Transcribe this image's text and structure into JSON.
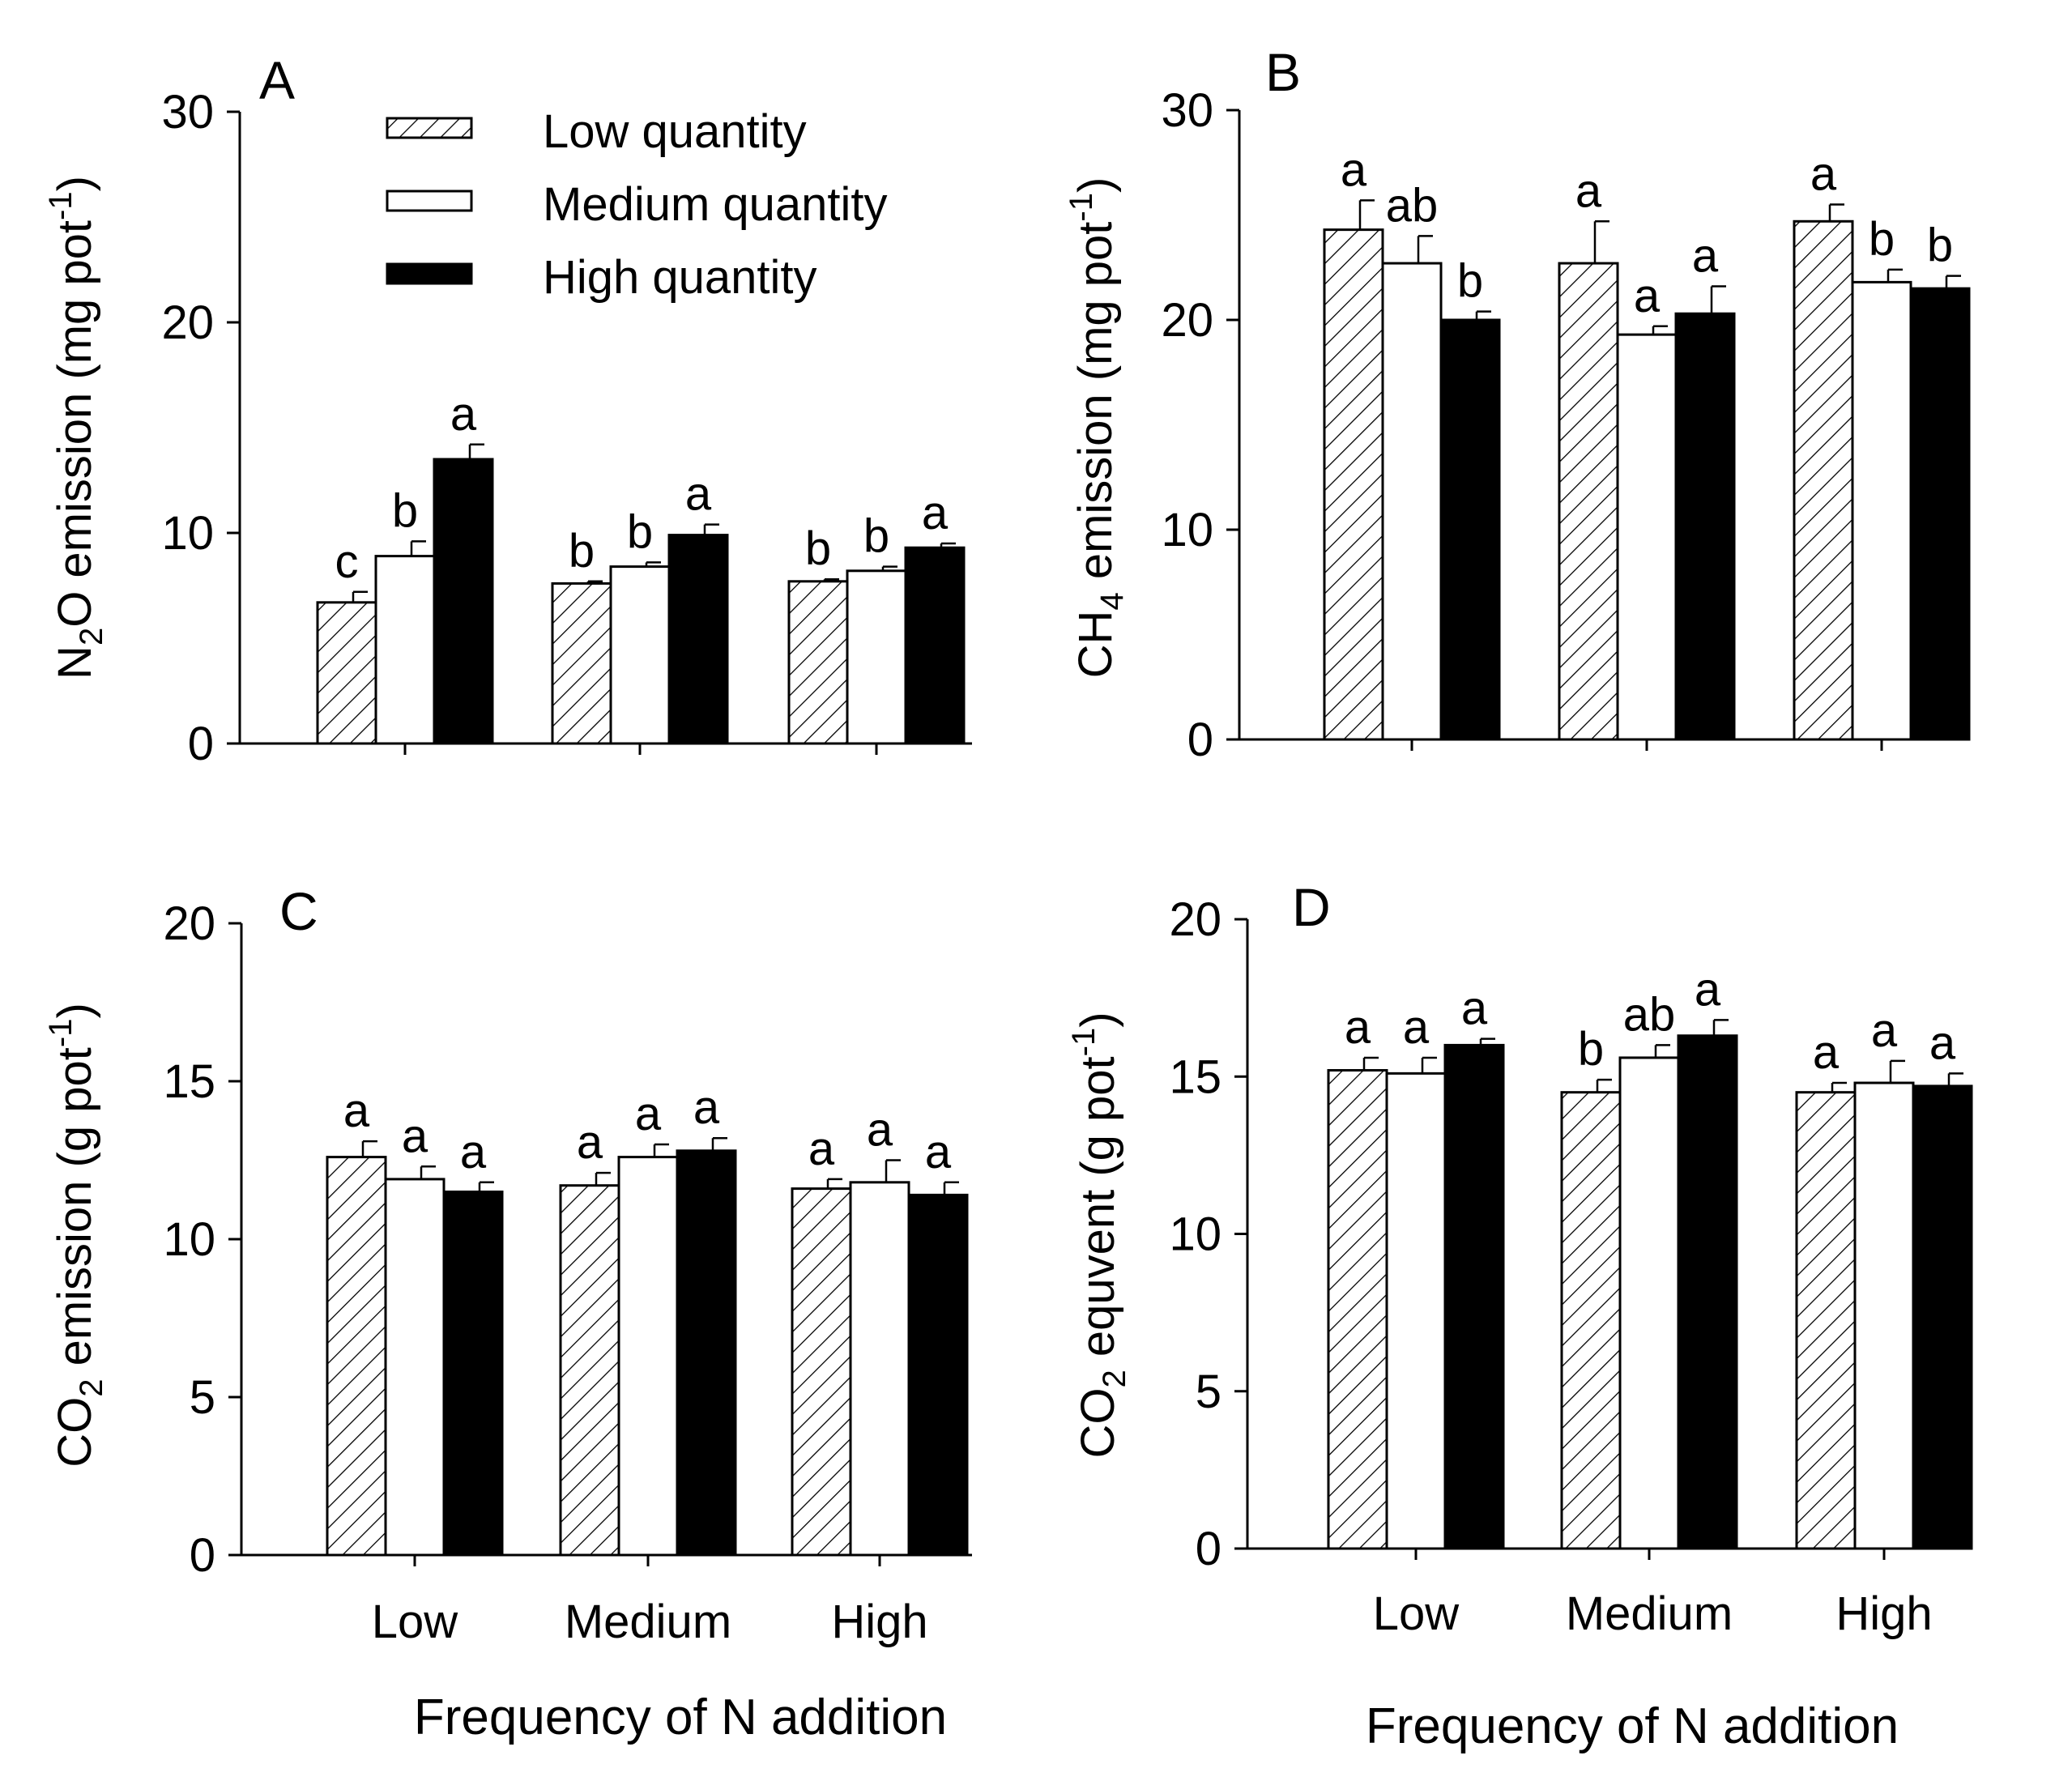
{
  "legend": {
    "items": [
      {
        "label": "Low quantity",
        "style": "hatched"
      },
      {
        "label": "Medium quantity",
        "style": "white"
      },
      {
        "label": "High quantity",
        "style": "black"
      }
    ]
  },
  "x_axis_title": "Frequency of N addition",
  "chart_data": [
    {
      "panel": "A",
      "type": "bar",
      "categories": [
        "Low",
        "Medium",
        "High"
      ],
      "ylabel_parts": [
        "N",
        "2",
        "O emission (mg pot",
        "-1",
        ")"
      ],
      "ylim": [
        0,
        30
      ],
      "yticks": [
        0,
        10,
        20,
        30
      ],
      "series": [
        {
          "name": "Low quantity",
          "values": [
            6.7,
            7.6,
            7.7
          ],
          "errors": [
            0.5,
            0.1,
            0.1
          ],
          "letters": [
            "c",
            "b",
            "b"
          ]
        },
        {
          "name": "Medium quantity",
          "values": [
            8.9,
            8.4,
            8.2
          ],
          "errors": [
            0.7,
            0.2,
            0.2
          ],
          "letters": [
            "b",
            "b",
            "b"
          ]
        },
        {
          "name": "High quantity",
          "values": [
            13.5,
            9.9,
            9.3
          ],
          "errors": [
            0.7,
            0.5,
            0.2
          ],
          "letters": [
            "a",
            "a",
            "a"
          ]
        }
      ]
    },
    {
      "panel": "B",
      "type": "bar",
      "categories": [
        "Low",
        "Medium",
        "High"
      ],
      "ylabel_parts": [
        "CH",
        "4",
        " emission (mg pot",
        "-1",
        ")"
      ],
      "ylim": [
        0,
        30
      ],
      "yticks": [
        0,
        10,
        20,
        30
      ],
      "series": [
        {
          "name": "Low quantity",
          "values": [
            24.3,
            22.7,
            24.7
          ],
          "errors": [
            1.4,
            2.0,
            0.8
          ],
          "letters": [
            "a",
            "a",
            "a"
          ]
        },
        {
          "name": "Medium quantity",
          "values": [
            22.7,
            19.3,
            21.8
          ],
          "errors": [
            1.3,
            0.4,
            0.6
          ],
          "letters": [
            "ab",
            "a",
            "b"
          ]
        },
        {
          "name": "High quantity",
          "values": [
            20.0,
            20.3,
            21.5
          ],
          "errors": [
            0.4,
            1.3,
            0.6
          ],
          "letters": [
            "b",
            "a",
            "b"
          ]
        }
      ]
    },
    {
      "panel": "C",
      "type": "bar",
      "categories": [
        "Low",
        "Medium",
        "High"
      ],
      "ylabel_parts": [
        "CO",
        "2",
        " emission (g pot",
        "-1",
        ")"
      ],
      "ylim": [
        0,
        20
      ],
      "yticks": [
        0,
        5,
        10,
        15,
        20
      ],
      "series": [
        {
          "name": "Low quantity",
          "values": [
            12.6,
            11.7,
            11.6
          ],
          "errors": [
            0.5,
            0.4,
            0.3
          ],
          "letters": [
            "a",
            "a",
            "a"
          ]
        },
        {
          "name": "Medium quantity",
          "values": [
            11.9,
            12.6,
            11.8
          ],
          "errors": [
            0.4,
            0.4,
            0.7
          ],
          "letters": [
            "a",
            "a",
            "a"
          ]
        },
        {
          "name": "High quantity",
          "values": [
            11.5,
            12.8,
            11.4
          ],
          "errors": [
            0.3,
            0.4,
            0.4
          ],
          "letters": [
            "a",
            "a",
            "a"
          ]
        }
      ]
    },
    {
      "panel": "D",
      "type": "bar",
      "categories": [
        "Low",
        "Medium",
        "High"
      ],
      "ylabel_parts": [
        "CO",
        "2",
        " equvent (g pot",
        "-1",
        ")"
      ],
      "ylim": [
        0,
        20
      ],
      "yticks": [
        0,
        5,
        10,
        15,
        20
      ],
      "series": [
        {
          "name": "Low quantity",
          "values": [
            15.2,
            14.5,
            14.5
          ],
          "errors": [
            0.4,
            0.4,
            0.3
          ],
          "letters": [
            "a",
            "b",
            "a"
          ]
        },
        {
          "name": "Medium quantity",
          "values": [
            15.1,
            15.6,
            14.8
          ],
          "errors": [
            0.5,
            0.4,
            0.7
          ],
          "letters": [
            "a",
            "ab",
            "a"
          ]
        },
        {
          "name": "High quantity",
          "values": [
            16.0,
            16.3,
            14.7
          ],
          "errors": [
            0.2,
            0.5,
            0.4
          ],
          "letters": [
            "a",
            "a",
            "a"
          ]
        }
      ]
    }
  ]
}
